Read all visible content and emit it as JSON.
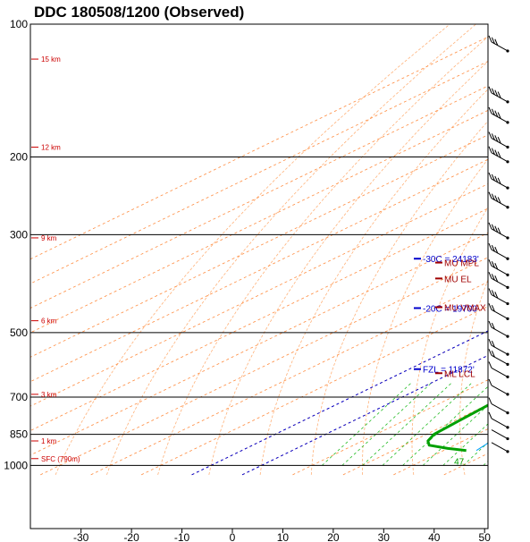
{
  "title": "DDC   180508/1200  (Observed)",
  "chart_data": {
    "type": "line",
    "title": "DDC   180508/1200  (Observed)",
    "station": "DDC",
    "time": "180508/1200",
    "kind": "(Observed)",
    "pressure_ticks": [
      100,
      200,
      300,
      500,
      700,
      850,
      1000
    ],
    "temp_ticks": [
      -30,
      -20,
      -10,
      0,
      10,
      20,
      30,
      40,
      50
    ],
    "xlim": [
      -40,
      50
    ],
    "ylim_hpa": [
      1050,
      100
    ],
    "height_labels": [
      {
        "p": 120,
        "text": "15 km"
      },
      {
        "p": 190,
        "text": "12 km"
      },
      {
        "p": 305,
        "text": "9 km"
      },
      {
        "p": 470,
        "text": "6 km"
      },
      {
        "p": 690,
        "text": "3 km"
      },
      {
        "p": 880,
        "text": "1 km"
      },
      {
        "p": 965,
        "text": "SFC (790m)"
      }
    ],
    "series": [
      {
        "key": "temperature",
        "color": "#ff0000",
        "values": [
          [
            925,
            23.5
          ],
          [
            920,
            25.5
          ],
          [
            905,
            27
          ],
          [
            890,
            29
          ],
          [
            875,
            30.5
          ],
          [
            860,
            32
          ],
          [
            850,
            32.5
          ],
          [
            840,
            31
          ],
          [
            800,
            28.5
          ],
          [
            750,
            25
          ],
          [
            700,
            21.5
          ],
          [
            650,
            18
          ],
          [
            600,
            14.5
          ],
          [
            550,
            10.5
          ],
          [
            500,
            8
          ],
          [
            480,
            5.5
          ],
          [
            450,
            3
          ],
          [
            400,
            -3.5
          ],
          [
            350,
            -10
          ],
          [
            300,
            -16
          ],
          [
            275,
            -19.5
          ],
          [
            250,
            -23
          ],
          [
            225,
            -25.5
          ],
          [
            210,
            -28.5
          ],
          [
            200,
            -30
          ],
          [
            175,
            -33
          ],
          [
            160,
            -33
          ],
          [
            150,
            -32.5
          ],
          [
            140,
            -31
          ],
          [
            130,
            -26.5
          ],
          [
            120,
            -24.5
          ],
          [
            110,
            -19.5
          ],
          [
            100,
            -15.5
          ]
        ]
      },
      {
        "key": "dewpoint",
        "color": "#00a000",
        "values": [
          [
            925,
            14.5
          ],
          [
            915,
            10
          ],
          [
            900,
            5
          ],
          [
            880,
            3
          ],
          [
            850,
            1.5
          ],
          [
            800,
            1
          ],
          [
            700,
            0
          ],
          [
            600,
            -1
          ],
          [
            550,
            -1.5
          ],
          [
            500,
            -1
          ],
          [
            470,
            -2.5
          ],
          [
            450,
            -7
          ],
          [
            430,
            -11.5
          ],
          [
            400,
            -17
          ],
          [
            350,
            -22
          ],
          [
            300,
            -29.5
          ],
          [
            250,
            -41
          ],
          [
            225,
            -46.5
          ],
          [
            200,
            -48
          ],
          [
            175,
            -47
          ],
          [
            160,
            -46.5
          ],
          [
            150,
            -46
          ],
          [
            140,
            -42
          ],
          [
            130,
            -39
          ],
          [
            120,
            -35
          ],
          [
            110,
            -33
          ],
          [
            100,
            -29
          ]
        ]
      },
      {
        "key": "virtual-temperature",
        "color": "#5a6cff",
        "values": [
          [
            925,
            25
          ],
          [
            900,
            27.5
          ],
          [
            875,
            31
          ],
          [
            850,
            33
          ],
          [
            800,
            29.5
          ],
          [
            700,
            22.5
          ],
          [
            600,
            15.5
          ],
          [
            500,
            8.5
          ],
          [
            400,
            -3
          ],
          [
            300,
            -15.5
          ],
          [
            250,
            -22.5
          ],
          [
            200,
            -29.5
          ],
          [
            175,
            -32.5
          ],
          [
            150,
            -32
          ],
          [
            130,
            -26
          ],
          [
            120,
            -24
          ],
          [
            110,
            -19
          ],
          [
            100,
            -15
          ]
        ]
      },
      {
        "key": "parcel-path",
        "color": "#a00000",
        "values": [
          [
            925,
            23
          ],
          [
            850,
            14
          ],
          [
            800,
            10
          ],
          [
            700,
            6
          ],
          [
            600,
            3
          ],
          [
            500,
            -5
          ],
          [
            400,
            -20
          ],
          [
            300,
            -37
          ],
          [
            250,
            -47
          ],
          [
            200,
            -57
          ],
          [
            150,
            -67
          ],
          [
            100,
            -79
          ]
        ]
      },
      {
        "key": "wetbulb",
        "color": "#00a0ff",
        "values": [
          [
            925,
            16.5
          ],
          [
            900,
            16
          ],
          [
            875,
            15.5
          ],
          [
            850,
            14.5
          ],
          [
            800,
            13
          ],
          [
            700,
            10.5
          ],
          [
            600,
            6.5
          ],
          [
            500,
            2
          ],
          [
            450,
            -1
          ],
          [
            400,
            -4.5
          ],
          [
            350,
            -9
          ],
          [
            300,
            -17
          ]
        ]
      }
    ],
    "surface_labels": {
      "dewpoint": "47",
      "temperature": "65"
    },
    "annotations": [
      {
        "text": "-30C = 24183'",
        "color": "#0000cc",
        "p": 340
      },
      {
        "text": "MU MPL",
        "color": "#a00000",
        "p": 347
      },
      {
        "text": "MU EL",
        "color": "#a00000",
        "p": 377
      },
      {
        "text": "-20C = 19700",
        "color": "#0000cc",
        "p": 440
      },
      {
        "text": "MU VMAX",
        "color": "#a00000",
        "p": 438
      },
      {
        "text": "FZL = 11872'",
        "color": "#0000cc",
        "p": 605
      },
      {
        "text": "ML LCL",
        "color": "#a00000",
        "p": 618
      }
    ]
  }
}
